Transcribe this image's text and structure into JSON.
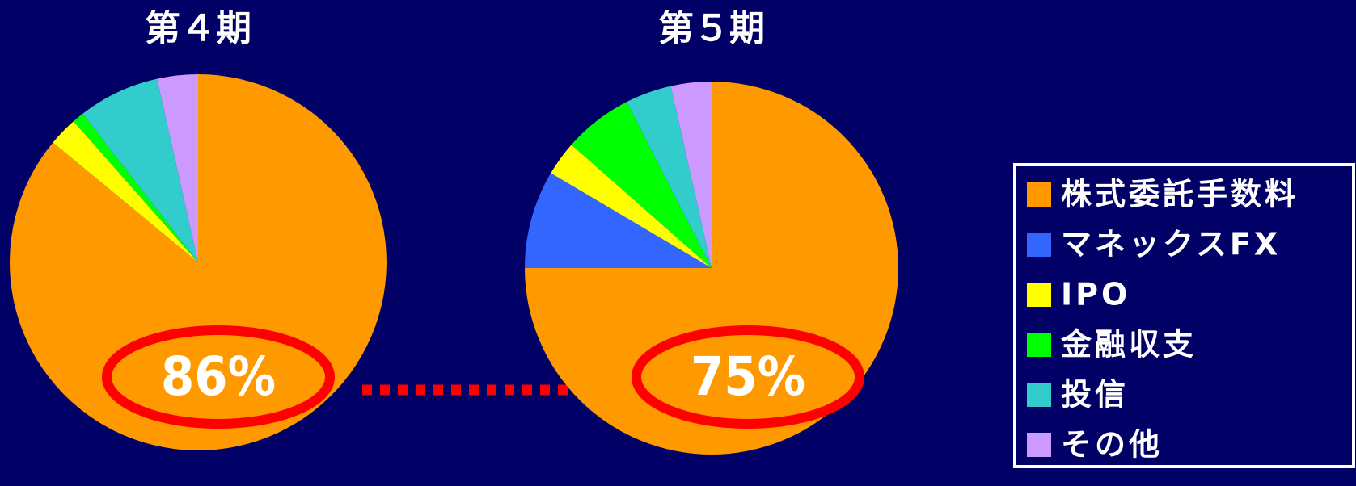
{
  "chart_data": [
    {
      "type": "pie",
      "title": "第４期",
      "categories": [
        "株式委託手数料",
        "マネックスFX",
        "IPO",
        "金融収支",
        "投信",
        "その他"
      ],
      "values": [
        86,
        0,
        2.5,
        1,
        7,
        3.5
      ],
      "colors": [
        "#ff9900",
        "#3366ff",
        "#ffff00",
        "#00ff00",
        "#33cccc",
        "#cc99ff"
      ],
      "annotation": "86%"
    },
    {
      "type": "pie",
      "title": "第５期",
      "categories": [
        "株式委託手数料",
        "マネックスFX",
        "IPO",
        "金融収支",
        "投信",
        "その他"
      ],
      "values": [
        75,
        8.5,
        3,
        6,
        4,
        3.5
      ],
      "colors": [
        "#ff9900",
        "#3366ff",
        "#ffff00",
        "#00ff00",
        "#33cccc",
        "#cc99ff"
      ],
      "annotation": "75%"
    }
  ]
}
